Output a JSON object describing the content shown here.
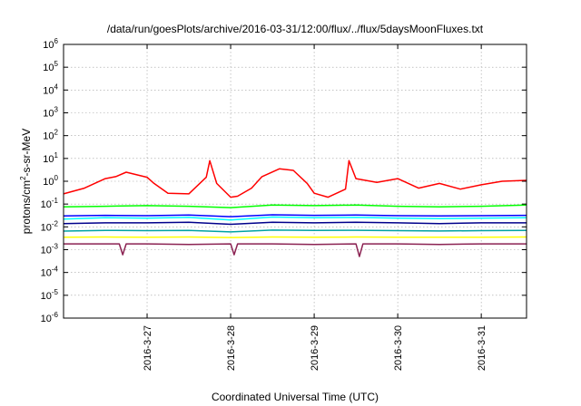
{
  "chart_data": {
    "type": "line",
    "title": "/data/run/goesPlots/archive/2016-03-31/12:00/flux/../flux/5daysMoonFluxes.txt",
    "xlabel": "Coordinated Universal Time (UTC)",
    "ylabel": "protons/cm2-s-sr-MeV",
    "ylabel_parts": {
      "pre": "protons/cm",
      "sup": "2",
      "post": "-s-sr-MeV"
    },
    "yscale": "log",
    "ylim": [
      1e-06,
      1000000.0
    ],
    "xlim": [
      "2016-03-26 00:00",
      "2016-03-31 13:00"
    ],
    "x_ticks": [
      {
        "label": "2016-3-27",
        "time": "2016-03-27 00:00"
      },
      {
        "label": "2016-3-28",
        "time": "2016-03-28 00:00"
      },
      {
        "label": "2016-3-29",
        "time": "2016-03-29 00:00"
      },
      {
        "label": "2016-3-30",
        "time": "2016-03-30 00:00"
      },
      {
        "label": "2016-3-31",
        "time": "2016-03-31 00:00"
      }
    ],
    "y_ticks": [
      {
        "base": "10",
        "exp": "-6",
        "value": 1e-06
      },
      {
        "base": "10",
        "exp": "-5",
        "value": 1e-05
      },
      {
        "base": "10",
        "exp": "-4",
        "value": 0.0001
      },
      {
        "base": "10",
        "exp": "-3",
        "value": 0.001
      },
      {
        "base": "10",
        "exp": "-2",
        "value": 0.01
      },
      {
        "base": "10",
        "exp": "-1",
        "value": 0.1
      },
      {
        "base": "10",
        "exp": "0",
        "value": 1
      },
      {
        "base": "10",
        "exp": "1",
        "value": 10
      },
      {
        "base": "10",
        "exp": "2",
        "value": 100
      },
      {
        "base": "10",
        "exp": "3",
        "value": 1000
      },
      {
        "base": "10",
        "exp": "4",
        "value": 10000
      },
      {
        "base": "10",
        "exp": "5",
        "value": 100000
      },
      {
        "base": "10",
        "exp": "6",
        "value": 1000000
      }
    ],
    "grid": true,
    "series": [
      {
        "color": "#ff0000",
        "x": [
          "2016-03-26 00:00",
          "2016-03-26 06:00",
          "2016-03-26 12:00",
          "2016-03-26 15:00",
          "2016-03-26 18:00",
          "2016-03-27 00:00",
          "2016-03-27 02:00",
          "2016-03-27 06:00",
          "2016-03-27 12:00",
          "2016-03-27 17:00",
          "2016-03-27 18:00",
          "2016-03-27 20:00",
          "2016-03-28 00:00",
          "2016-03-28 02:00",
          "2016-03-28 06:00",
          "2016-03-28 09:00",
          "2016-03-28 14:00",
          "2016-03-28 18:00",
          "2016-03-28 22:00",
          "2016-03-29 00:00",
          "2016-03-29 04:00",
          "2016-03-29 09:00",
          "2016-03-29 10:00",
          "2016-03-29 12:00",
          "2016-03-29 18:00",
          "2016-03-30 00:00",
          "2016-03-30 06:00",
          "2016-03-30 12:00",
          "2016-03-30 18:00",
          "2016-03-31 00:00",
          "2016-03-31 06:00",
          "2016-03-31 13:00"
        ],
        "y": [
          0.28,
          0.5,
          1.3,
          1.6,
          2.5,
          1.5,
          0.8,
          0.3,
          0.28,
          1.5,
          8,
          0.8,
          0.2,
          0.22,
          0.5,
          1.6,
          3.5,
          3.0,
          0.8,
          0.3,
          0.2,
          0.45,
          8,
          1.3,
          0.9,
          1.3,
          0.5,
          0.8,
          0.45,
          0.7,
          1.0,
          1.1
        ]
      },
      {
        "color": "#00ff00",
        "x": [
          "2016-03-26 00:00",
          "2016-03-26 12:00",
          "2016-03-27 00:00",
          "2016-03-27 12:00",
          "2016-03-28 00:00",
          "2016-03-28 12:00",
          "2016-03-29 00:00",
          "2016-03-29 12:00",
          "2016-03-30 00:00",
          "2016-03-30 12:00",
          "2016-03-31 00:00",
          "2016-03-31 13:00"
        ],
        "y": [
          0.075,
          0.08,
          0.085,
          0.08,
          0.07,
          0.09,
          0.085,
          0.09,
          0.08,
          0.075,
          0.08,
          0.09
        ]
      },
      {
        "color": "#00ffff",
        "x": [
          "2016-03-26 00:00",
          "2016-03-26 12:00",
          "2016-03-27 00:00",
          "2016-03-27 12:00",
          "2016-03-28 00:00",
          "2016-03-28 12:00",
          "2016-03-29 00:00",
          "2016-03-29 12:00",
          "2016-03-30 00:00",
          "2016-03-30 12:00",
          "2016-03-31 00:00",
          "2016-03-31 13:00"
        ],
        "y": [
          0.022,
          0.025,
          0.024,
          0.026,
          0.02,
          0.027,
          0.025,
          0.026,
          0.024,
          0.023,
          0.024,
          0.025
        ]
      },
      {
        "color": "#0000ff",
        "x": [
          "2016-03-26 00:00",
          "2016-03-26 12:00",
          "2016-03-27 00:00",
          "2016-03-27 12:00",
          "2016-03-28 00:00",
          "2016-03-28 12:00",
          "2016-03-29 00:00",
          "2016-03-29 12:00",
          "2016-03-30 00:00",
          "2016-03-30 12:00",
          "2016-03-31 00:00",
          "2016-03-31 13:00"
        ],
        "y": [
          0.03,
          0.032,
          0.031,
          0.033,
          0.028,
          0.034,
          0.032,
          0.033,
          0.031,
          0.03,
          0.031,
          0.032
        ]
      },
      {
        "color": "#00008b",
        "x": [
          "2016-03-26 00:00",
          "2016-03-26 12:00",
          "2016-03-27 00:00",
          "2016-03-27 12:00",
          "2016-03-28 00:00",
          "2016-03-28 12:00",
          "2016-03-29 00:00",
          "2016-03-29 12:00",
          "2016-03-30 00:00",
          "2016-03-30 12:00",
          "2016-03-31 00:00",
          "2016-03-31 13:00"
        ],
        "y": [
          0.014,
          0.015,
          0.015,
          0.016,
          0.013,
          0.016,
          0.015,
          0.016,
          0.015,
          0.014,
          0.015,
          0.015
        ]
      },
      {
        "color": "#00a2a2",
        "x": [
          "2016-03-26 00:00",
          "2016-03-26 12:00",
          "2016-03-27 00:00",
          "2016-03-27 12:00",
          "2016-03-28 00:00",
          "2016-03-28 12:00",
          "2016-03-29 00:00",
          "2016-03-29 12:00",
          "2016-03-30 00:00",
          "2016-03-30 12:00",
          "2016-03-31 00:00",
          "2016-03-31 13:00"
        ],
        "y": [
          0.0065,
          0.007,
          0.0068,
          0.007,
          0.006,
          0.0072,
          0.007,
          0.0071,
          0.0068,
          0.0066,
          0.0068,
          0.007
        ]
      },
      {
        "color": "#ffff00",
        "x": [
          "2016-03-26 00:00",
          "2016-03-26 12:00",
          "2016-03-27 00:00",
          "2016-03-27 12:00",
          "2016-03-28 00:00",
          "2016-03-28 12:00",
          "2016-03-29 00:00",
          "2016-03-29 12:00",
          "2016-03-30 00:00",
          "2016-03-30 12:00",
          "2016-03-31 00:00",
          "2016-03-31 13:00"
        ],
        "y": [
          0.0035,
          0.0036,
          0.0035,
          0.0036,
          0.0034,
          0.0036,
          0.0035,
          0.0036,
          0.0035,
          0.0035,
          0.0035,
          0.0036
        ]
      },
      {
        "color": "#8b2252",
        "x": [
          "2016-03-26 00:00",
          "2016-03-26 12:00",
          "2016-03-26 16:00",
          "2016-03-26 17:00",
          "2016-03-26 18:00",
          "2016-03-27 00:00",
          "2016-03-27 12:00",
          "2016-03-28 00:00",
          "2016-03-28 01:00",
          "2016-03-28 02:00",
          "2016-03-28 12:00",
          "2016-03-29 00:00",
          "2016-03-29 12:00",
          "2016-03-29 13:00",
          "2016-03-29 14:00",
          "2016-03-30 00:00",
          "2016-03-30 12:00",
          "2016-03-31 00:00",
          "2016-03-31 13:00"
        ],
        "y": [
          0.0018,
          0.0018,
          0.0018,
          0.0006,
          0.0018,
          0.0018,
          0.0017,
          0.0018,
          0.0006,
          0.0018,
          0.0018,
          0.0017,
          0.0018,
          0.0005,
          0.0018,
          0.0018,
          0.0017,
          0.0018,
          0.0018
        ]
      }
    ]
  }
}
